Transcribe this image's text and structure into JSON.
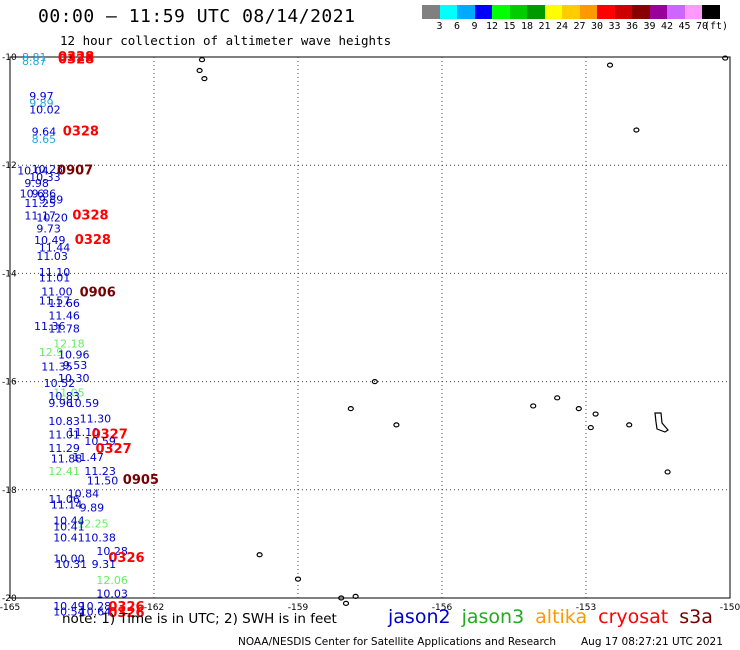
{
  "header": {
    "title": "00:00 – 11:59 UTC 08/14/2021",
    "subtitle": "12 hour collection of altimeter wave heights"
  },
  "colorbar": {
    "colors": [
      "#808080",
      "#00ffff",
      "#00aaff",
      "#0000ff",
      "#00ff00",
      "#00cc00",
      "#009900",
      "#ffff00",
      "#ffcc00",
      "#ff9900",
      "#ff0000",
      "#cc0000",
      "#880000",
      "#990099",
      "#cc66ff",
      "#ff99ff",
      "#000000"
    ],
    "labels": [
      "3",
      "6",
      "9",
      "12",
      "15",
      "18",
      "21",
      "24",
      "27",
      "30",
      "33",
      "36",
      "39",
      "42",
      "45",
      "70",
      "(ft)"
    ]
  },
  "map": {
    "lon_ticks": [
      "-165",
      "-162",
      "-159",
      "-156",
      "-153",
      "-150"
    ],
    "lat_ticks": [
      "-10",
      "-12",
      "-14",
      "-16",
      "-18",
      "-20"
    ],
    "grid_lon": [
      -162,
      -159,
      -156,
      -153
    ],
    "grid_lat": [
      -12,
      -14,
      -16,
      -18
    ],
    "colors": {
      "jason2": "#0000cc",
      "jason3": "#22bb22",
      "altika": "#ff9900",
      "cryosat": "#ff0000",
      "s3a": "#770000",
      "jason3_light": "#66ee66",
      "s3a_blue": "#22aadd"
    },
    "labels": [
      {
        "text": "8.81",
        "lon": -164.75,
        "lat": -10.0,
        "color": "#22aadd"
      },
      {
        "text": "8.87",
        "lon": -164.75,
        "lat": -10.07,
        "color": "#22aadd"
      },
      {
        "text": "0328",
        "lon": -164.0,
        "lat": -10.0,
        "color": "#ff0000"
      },
      {
        "text": "0328",
        "lon": -164.0,
        "lat": -10.05,
        "color": "#ff0000"
      },
      {
        "text": "9.97",
        "lon": -164.6,
        "lat": -10.72,
        "color": "#0000cc"
      },
      {
        "text": "9.89",
        "lon": -164.6,
        "lat": -10.85,
        "color": "#22aadd"
      },
      {
        "text": "10.02",
        "lon": -164.6,
        "lat": -10.97,
        "color": "#0000cc"
      },
      {
        "text": "9.64",
        "lon": -164.55,
        "lat": -11.38,
        "color": "#0000cc"
      },
      {
        "text": "0328",
        "lon": -163.9,
        "lat": -11.38,
        "color": "#ff0000"
      },
      {
        "text": "8.65",
        "lon": -164.55,
        "lat": -11.52,
        "color": "#22aadd"
      },
      {
        "text": "10.04",
        "lon": -164.85,
        "lat": -12.1,
        "color": "#0000cc"
      },
      {
        "text": "10.23",
        "lon": -164.55,
        "lat": -12.07,
        "color": "#0000cc"
      },
      {
        "text": "0907",
        "lon": -164.02,
        "lat": -12.1,
        "color": "#770000"
      },
      {
        "text": "10.33",
        "lon": -164.6,
        "lat": -12.22,
        "color": "#0000cc"
      },
      {
        "text": "9.98",
        "lon": -164.7,
        "lat": -12.33,
        "color": "#0000cc"
      },
      {
        "text": "10.6",
        "lon": -164.8,
        "lat": -12.52,
        "color": "#0000cc"
      },
      {
        "text": "9.86",
        "lon": -164.55,
        "lat": -12.52,
        "color": "#0000cc"
      },
      {
        "text": "11.25",
        "lon": -164.7,
        "lat": -12.7,
        "color": "#0000cc"
      },
      {
        "text": "9.89",
        "lon": -164.4,
        "lat": -12.63,
        "color": "#0000cc"
      },
      {
        "text": "11.17",
        "lon": -164.7,
        "lat": -12.93,
        "color": "#0000cc"
      },
      {
        "text": "10.20",
        "lon": -164.45,
        "lat": -12.97,
        "color": "#0000cc"
      },
      {
        "text": "0328",
        "lon": -163.7,
        "lat": -12.93,
        "color": "#ff0000"
      },
      {
        "text": "9.73",
        "lon": -164.45,
        "lat": -13.17,
        "color": "#0000cc"
      },
      {
        "text": "10.49",
        "lon": -164.5,
        "lat": -13.38,
        "color": "#0000cc"
      },
      {
        "text": "0328",
        "lon": -163.65,
        "lat": -13.38,
        "color": "#ff0000"
      },
      {
        "text": "11.44",
        "lon": -164.4,
        "lat": -13.52,
        "color": "#0000cc"
      },
      {
        "text": "11.03",
        "lon": -164.45,
        "lat": -13.68,
        "color": "#0000cc"
      },
      {
        "text": "11.10",
        "lon": -164.4,
        "lat": -13.97,
        "color": "#0000cc"
      },
      {
        "text": "11.01",
        "lon": -164.4,
        "lat": -14.08,
        "color": "#0000cc"
      },
      {
        "text": "11.00",
        "lon": -164.35,
        "lat": -14.33,
        "color": "#0000cc"
      },
      {
        "text": "0906",
        "lon": -163.55,
        "lat": -14.35,
        "color": "#770000"
      },
      {
        "text": "11.57",
        "lon": -164.4,
        "lat": -14.5,
        "color": "#0000cc"
      },
      {
        "text": "11.66",
        "lon": -164.2,
        "lat": -14.55,
        "color": "#0000cc"
      },
      {
        "text": "11.46",
        "lon": -164.2,
        "lat": -14.78,
        "color": "#0000cc"
      },
      {
        "text": "11.36",
        "lon": -164.5,
        "lat": -14.97,
        "color": "#0000cc"
      },
      {
        "text": "11.78",
        "lon": -164.2,
        "lat": -15.02,
        "color": "#0000cc"
      },
      {
        "text": "12.18",
        "lon": -164.1,
        "lat": -15.3,
        "color": "#66ee66"
      },
      {
        "text": "12.9",
        "lon": -164.4,
        "lat": -15.45,
        "color": "#66ee66"
      },
      {
        "text": "10.96",
        "lon": -164.0,
        "lat": -15.5,
        "color": "#0000cc"
      },
      {
        "text": "11.35",
        "lon": -164.35,
        "lat": -15.72,
        "color": "#0000cc"
      },
      {
        "text": "9.53",
        "lon": -163.9,
        "lat": -15.69,
        "color": "#0000cc"
      },
      {
        "text": "10.30",
        "lon": -164.0,
        "lat": -15.93,
        "color": "#0000cc"
      },
      {
        "text": "10.52",
        "lon": -164.3,
        "lat": -16.03,
        "color": "#0000cc"
      },
      {
        "text": "11.05",
        "lon": -164.1,
        "lat": -16.2,
        "color": "#66ee66"
      },
      {
        "text": "10.83",
        "lon": -164.2,
        "lat": -16.27,
        "color": "#0000cc"
      },
      {
        "text": "9.96",
        "lon": -164.2,
        "lat": -16.4,
        "color": "#0000cc"
      },
      {
        "text": "10.59",
        "lon": -163.8,
        "lat": -16.4,
        "color": "#0000cc"
      },
      {
        "text": "11.30",
        "lon": -163.55,
        "lat": -16.68,
        "color": "#0000cc"
      },
      {
        "text": "10.83",
        "lon": -164.2,
        "lat": -16.73,
        "color": "#0000cc"
      },
      {
        "text": "11.01",
        "lon": -164.2,
        "lat": -16.98,
        "color": "#0000cc"
      },
      {
        "text": "11.10",
        "lon": -163.8,
        "lat": -16.93,
        "color": "#0000cc"
      },
      {
        "text": "0327",
        "lon": -163.3,
        "lat": -16.98,
        "color": "#ff0000"
      },
      {
        "text": "10.59",
        "lon": -163.45,
        "lat": -17.1,
        "color": "#0000cc"
      },
      {
        "text": "11.29",
        "lon": -164.2,
        "lat": -17.23,
        "color": "#0000cc"
      },
      {
        "text": "0327",
        "lon": -163.22,
        "lat": -17.25,
        "color": "#ff0000"
      },
      {
        "text": "11.88",
        "lon": -164.15,
        "lat": -17.42,
        "color": "#0000cc"
      },
      {
        "text": "11.47",
        "lon": -163.7,
        "lat": -17.39,
        "color": "#0000cc"
      },
      {
        "text": "12.41",
        "lon": -164.2,
        "lat": -17.65,
        "color": "#66ee66"
      },
      {
        "text": "11.23",
        "lon": -163.45,
        "lat": -17.65,
        "color": "#0000cc"
      },
      {
        "text": "11.50",
        "lon": -163.4,
        "lat": -17.83,
        "color": "#0000cc"
      },
      {
        "text": "0905",
        "lon": -162.65,
        "lat": -17.82,
        "color": "#770000"
      },
      {
        "text": "10.84",
        "lon": -163.8,
        "lat": -18.07,
        "color": "#0000cc"
      },
      {
        "text": "11.06",
        "lon": -164.2,
        "lat": -18.17,
        "color": "#0000cc"
      },
      {
        "text": "11.14",
        "lon": -164.15,
        "lat": -18.27,
        "color": "#0000cc"
      },
      {
        "text": "9.89",
        "lon": -163.55,
        "lat": -18.33,
        "color": "#0000cc"
      },
      {
        "text": "10.44",
        "lon": -164.1,
        "lat": -18.57,
        "color": "#0000cc"
      },
      {
        "text": "12.25",
        "lon": -163.6,
        "lat": -18.62,
        "color": "#66ee66"
      },
      {
        "text": "10.41",
        "lon": -164.1,
        "lat": -18.68,
        "color": "#0000cc"
      },
      {
        "text": "10.41",
        "lon": -164.1,
        "lat": -18.88,
        "color": "#0000cc"
      },
      {
        "text": "10.38",
        "lon": -163.45,
        "lat": -18.88,
        "color": "#0000cc"
      },
      {
        "text": "10.28",
        "lon": -163.2,
        "lat": -19.13,
        "color": "#0000cc"
      },
      {
        "text": "10.00",
        "lon": -164.1,
        "lat": -19.27,
        "color": "#0000cc"
      },
      {
        "text": "0326",
        "lon": -162.95,
        "lat": -19.26,
        "color": "#ff0000"
      },
      {
        "text": "10.31",
        "lon": -164.05,
        "lat": -19.37,
        "color": "#0000cc"
      },
      {
        "text": "9.31",
        "lon": -163.3,
        "lat": -19.37,
        "color": "#0000cc"
      },
      {
        "text": "12.06",
        "lon": -163.2,
        "lat": -19.67,
        "color": "#66ee66"
      },
      {
        "text": "10.03",
        "lon": -163.2,
        "lat": -19.92,
        "color": "#0000cc"
      },
      {
        "text": "10.49",
        "lon": -164.1,
        "lat": -20.15,
        "color": "#0000cc"
      },
      {
        "text": "10.28",
        "lon": -163.55,
        "lat": -20.15,
        "color": "#0000cc"
      },
      {
        "text": "0326",
        "lon": -162.95,
        "lat": -20.17,
        "color": "#ff0000"
      },
      {
        "text": "10.54",
        "lon": -164.1,
        "lat": -20.25,
        "color": "#0000cc"
      },
      {
        "text": "10.64",
        "lon": -163.55,
        "lat": -20.25,
        "color": "#0000cc"
      },
      {
        "text": "0326",
        "lon": -162.95,
        "lat": -20.28,
        "color": "#ff0000"
      }
    ]
  },
  "legend": {
    "note": "note: 1) Time is in UTC; 2) SWH is in feet",
    "satellites": [
      {
        "name": "jason2",
        "color": "#0000cc"
      },
      {
        "name": "jason3",
        "color": "#22aa22"
      },
      {
        "name": "altika",
        "color": "#ff9900"
      },
      {
        "name": "cryosat",
        "color": "#ff0000"
      },
      {
        "name": "s3a",
        "color": "#770000"
      }
    ]
  },
  "footer": {
    "credit": "NOAA/NESDIS Center for Satellite Applications and Research",
    "timestamp": "Aug 17 08:27:21 UTC 2021"
  }
}
